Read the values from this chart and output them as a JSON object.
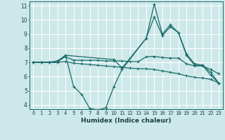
{
  "xlabel": "Humidex (Indice chaleur)",
  "bg_color": "#cde8e8",
  "grid_color": "#ffffff",
  "line_color": "#1a6b6b",
  "xlim": [
    -0.5,
    23.5
  ],
  "ylim": [
    3.7,
    11.3
  ],
  "yticks": [
    4,
    5,
    6,
    7,
    8,
    9,
    10,
    11
  ],
  "xticks": [
    0,
    1,
    2,
    3,
    4,
    5,
    6,
    7,
    8,
    9,
    10,
    11,
    12,
    13,
    14,
    15,
    16,
    17,
    18,
    19,
    20,
    21,
    22,
    23
  ],
  "series": [
    {
      "x": [
        0,
        1,
        2,
        3,
        4,
        10,
        11,
        14,
        15,
        16,
        17,
        18,
        19,
        20,
        21,
        22,
        23
      ],
      "y": [
        7.0,
        7.0,
        7.0,
        7.1,
        7.5,
        7.2,
        6.6,
        8.7,
        11.1,
        9.0,
        9.65,
        9.1,
        7.6,
        6.9,
        6.8,
        6.1,
        5.55
      ]
    },
    {
      "x": [
        0,
        1,
        2,
        3,
        4,
        5,
        6,
        7,
        8,
        9,
        10,
        11,
        14,
        15,
        16,
        17,
        18,
        19,
        20,
        21,
        22,
        23
      ],
      "y": [
        7.0,
        7.0,
        7.0,
        7.0,
        7.5,
        5.3,
        4.75,
        3.75,
        3.65,
        3.8,
        5.3,
        6.5,
        8.7,
        10.2,
        8.9,
        9.5,
        9.1,
        7.5,
        6.8,
        6.8,
        6.3,
        5.55
      ]
    },
    {
      "x": [
        0,
        1,
        2,
        3,
        4,
        5,
        6,
        7,
        8,
        9,
        10,
        11,
        12,
        13,
        14,
        15,
        16,
        17,
        18,
        19,
        20,
        21,
        22,
        23
      ],
      "y": [
        7.0,
        7.0,
        7.0,
        7.1,
        7.4,
        7.15,
        7.15,
        7.15,
        7.15,
        7.1,
        7.1,
        7.1,
        7.05,
        7.05,
        7.4,
        7.42,
        7.35,
        7.3,
        7.3,
        6.9,
        6.75,
        6.75,
        6.5,
        6.2
      ]
    },
    {
      "x": [
        0,
        1,
        2,
        3,
        4,
        5,
        6,
        7,
        8,
        9,
        10,
        11,
        12,
        13,
        14,
        15,
        16,
        17,
        18,
        19,
        20,
        21,
        22,
        23
      ],
      "y": [
        7.0,
        7.0,
        7.0,
        7.0,
        7.05,
        6.95,
        6.9,
        6.85,
        6.8,
        6.75,
        6.7,
        6.65,
        6.6,
        6.55,
        6.55,
        6.5,
        6.4,
        6.3,
        6.2,
        6.05,
        5.95,
        5.9,
        5.8,
        5.55
      ]
    }
  ]
}
